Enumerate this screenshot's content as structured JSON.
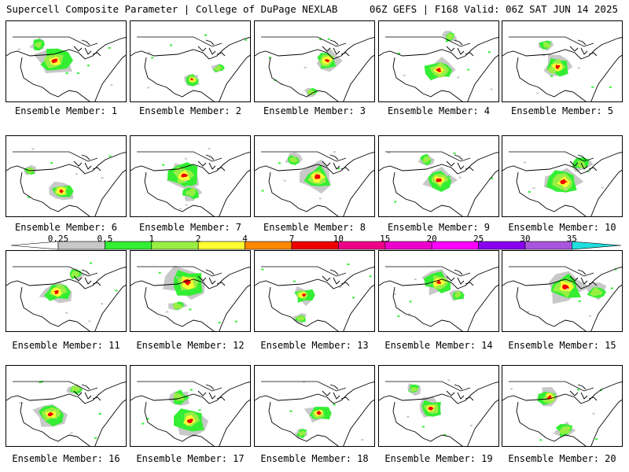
{
  "header": {
    "left": "Supercell Composite Parameter | College of DuPage NEXLAB",
    "right": "06Z GEFS | F168 Valid: 06Z SAT JUN 14 2025"
  },
  "legend": {
    "bins": [
      {
        "label": "0.25",
        "color": "#c8c8c8"
      },
      {
        "label": "0.5",
        "color": "#33ee33"
      },
      {
        "label": "1",
        "color": "#99ee44"
      },
      {
        "label": "2",
        "color": "#ffff33"
      },
      {
        "label": "4",
        "color": "#ff8800"
      },
      {
        "label": "7",
        "color": "#ee0000"
      },
      {
        "label": "10",
        "color": "#ee0088"
      },
      {
        "label": "15",
        "color": "#ee00cc"
      },
      {
        "label": "20",
        "color": "#ff00ff"
      },
      {
        "label": "25",
        "color": "#8800ee"
      },
      {
        "label": "30",
        "color": "#aa55dd"
      },
      {
        "label": "35",
        "color": "#22dddd"
      }
    ],
    "low_color": "#ffffff"
  },
  "panels": [
    {
      "label": "Ensemble Member: 1"
    },
    {
      "label": "Ensemble Member: 2"
    },
    {
      "label": "Ensemble Member: 3"
    },
    {
      "label": "Ensemble Member: 4"
    },
    {
      "label": "Ensemble Member: 5"
    },
    {
      "label": "Ensemble Member: 6"
    },
    {
      "label": "Ensemble Member: 7"
    },
    {
      "label": "Ensemble Member: 8"
    },
    {
      "label": "Ensemble Member: 9"
    },
    {
      "label": "Ensemble Member: 10"
    },
    {
      "label": "Ensemble Member: 11"
    },
    {
      "label": "Ensemble Member: 12"
    },
    {
      "label": "Ensemble Member: 13"
    },
    {
      "label": "Ensemble Member: 14"
    },
    {
      "label": "Ensemble Member: 15"
    },
    {
      "label": "Ensemble Member: 16"
    },
    {
      "label": "Ensemble Member: 17"
    },
    {
      "label": "Ensemble Member: 18"
    },
    {
      "label": "Ensemble Member: 19"
    },
    {
      "label": "Ensemble Member: 20"
    }
  ]
}
